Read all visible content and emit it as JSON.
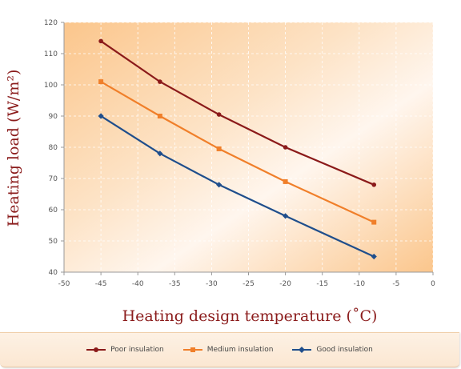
{
  "chart_data": {
    "type": "line",
    "xlabel": "Heating design temperature (˚C)",
    "ylabel": "Heating load (W/m²)",
    "xlim": [
      -50,
      0
    ],
    "ylim": [
      40,
      120
    ],
    "xticks": [
      -50,
      -45,
      -40,
      -35,
      -30,
      -25,
      -20,
      -15,
      -10,
      -5,
      0
    ],
    "yticks": [
      40,
      50,
      60,
      70,
      80,
      90,
      100,
      110,
      120
    ],
    "grid": true,
    "legend_position": "bottom",
    "series": [
      {
        "name": "Poor insulation",
        "color": "#8b1a1a",
        "marker": "circle",
        "x": [
          -45,
          -37,
          -29,
          -20,
          -8
        ],
        "y": [
          114,
          101,
          90.5,
          80,
          68
        ]
      },
      {
        "name": "Medium insulation",
        "color": "#f07f2a",
        "marker": "square",
        "x": [
          -45,
          -37,
          -29,
          -20,
          -8
        ],
        "y": [
          101,
          90,
          79.5,
          69,
          56
        ]
      },
      {
        "name": "Good insulation",
        "color": "#1f4e8c",
        "marker": "diamond",
        "x": [
          -45,
          -37,
          -29,
          -20,
          -8
        ],
        "y": [
          90,
          78,
          68,
          58,
          45
        ]
      }
    ]
  }
}
